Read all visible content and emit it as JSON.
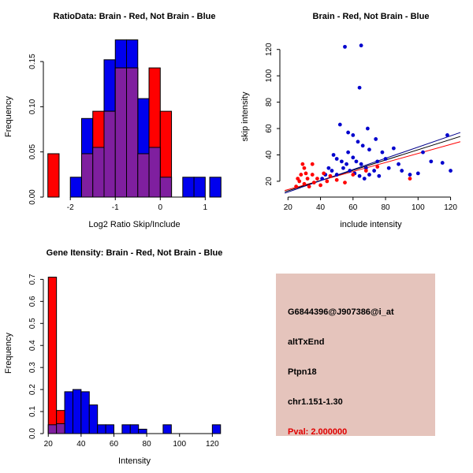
{
  "page": {
    "background": "#FFFFFF"
  },
  "colors": {
    "brain_red": "#FF0000",
    "not_brain_blue": "#0000EE",
    "overlap_purple": "#7F1F9F",
    "axis_black": "#000000",
    "info_bg": "#E5C4BC"
  },
  "chart_data": [
    {
      "type": "bar",
      "subtype": "histogram",
      "title": "RatioData: Brain - Red, Not Brain - Blue",
      "xlabel": "Log2 Ratio Skip/Include",
      "ylabel": "Frequency",
      "xlim": [
        -2.6,
        1.45
      ],
      "ylim": [
        0,
        0.178
      ],
      "xticks": [
        -2,
        -1,
        0,
        1
      ],
      "xtick_labels": [
        "-2",
        "-1",
        "0",
        "1"
      ],
      "yticks": [
        0,
        0.05,
        0.1,
        0.15
      ],
      "ytick_labels": [
        "0.00",
        "0.05",
        "0.10",
        "0.15"
      ],
      "bin_width": 0.25,
      "grid": false,
      "legend": "none",
      "overlap_color": "#7F1F9F",
      "series": [
        {
          "name": "Not Brain",
          "color": "#0000EE",
          "bins": [
            {
              "x": -2.0,
              "f": 0.022
            },
            {
              "x": -1.75,
              "f": 0.087
            },
            {
              "x": -1.5,
              "f": 0.055
            },
            {
              "x": -1.25,
              "f": 0.152
            },
            {
              "x": -1.0,
              "f": 0.174
            },
            {
              "x": -0.75,
              "f": 0.174
            },
            {
              "x": -0.5,
              "f": 0.109
            },
            {
              "x": -0.25,
              "f": 0.055
            },
            {
              "x": 0.0,
              "f": 0.022
            },
            {
              "x": 0.5,
              "f": 0.022
            },
            {
              "x": 0.75,
              "f": 0.022
            },
            {
              "x": 1.1,
              "f": 0.022
            }
          ]
        },
        {
          "name": "Brain",
          "color": "#FF0000",
          "bins": [
            {
              "x": -2.5,
              "f": 0.048
            },
            {
              "x": -1.75,
              "f": 0.048
            },
            {
              "x": -1.5,
              "f": 0.095
            },
            {
              "x": -1.25,
              "f": 0.095
            },
            {
              "x": -1.0,
              "f": 0.143
            },
            {
              "x": -0.75,
              "f": 0.143
            },
            {
              "x": -0.5,
              "f": 0.048
            },
            {
              "x": -0.25,
              "f": 0.143
            },
            {
              "x": 0.0,
              "f": 0.095
            }
          ]
        }
      ]
    },
    {
      "type": "scatter",
      "title": "Brain - Red, Not Brain - Blue",
      "xlabel": "include intensity",
      "ylabel": "skip intensity",
      "xlim": [
        15,
        127
      ],
      "ylim": [
        8,
        130
      ],
      "xticks": [
        20,
        40,
        60,
        80,
        100,
        120
      ],
      "xtick_labels": [
        "20",
        "40",
        "60",
        "80",
        "100",
        "120"
      ],
      "yticks": [
        20,
        40,
        60,
        80,
        100,
        120
      ],
      "ytick_labels": [
        "20",
        "40",
        "60",
        "80",
        "100",
        "120"
      ],
      "grid": false,
      "legend": "none",
      "lines": [
        {
          "color": "#FF0000",
          "x1": 18,
          "y1": 13,
          "x2": 126,
          "y2": 50
        },
        {
          "color": "#000000",
          "x1": 18,
          "y1": 12,
          "x2": 126,
          "y2": 54
        },
        {
          "color": "#00008B",
          "x1": 18,
          "y1": 11,
          "x2": 126,
          "y2": 57
        }
      ],
      "series": [
        {
          "name": "Not Brain",
          "color": "#0000CD",
          "points": [
            [
              55,
              122
            ],
            [
              65,
              123
            ],
            [
              64,
              91
            ],
            [
              52,
              63
            ],
            [
              69,
              60
            ],
            [
              57,
              57
            ],
            [
              60,
              55
            ],
            [
              74,
              52
            ],
            [
              63,
              50
            ],
            [
              66,
              47
            ],
            [
              85,
              45
            ],
            [
              70,
              44
            ],
            [
              57,
              42
            ],
            [
              78,
              42
            ],
            [
              103,
              42
            ],
            [
              48,
              40
            ],
            [
              60,
              38
            ],
            [
              50,
              37
            ],
            [
              80,
              37
            ],
            [
              53,
              35
            ],
            [
              62,
              35
            ],
            [
              75,
              35
            ],
            [
              108,
              35
            ],
            [
              115,
              34
            ],
            [
              65,
              33
            ],
            [
              88,
              33
            ],
            [
              56,
              33
            ],
            [
              68,
              30
            ],
            [
              82,
              30
            ],
            [
              45,
              30
            ],
            [
              54,
              30
            ],
            [
              47,
              28
            ],
            [
              58,
              28
            ],
            [
              90,
              28
            ],
            [
              73,
              28
            ],
            [
              120,
              28
            ],
            [
              61,
              26
            ],
            [
              100,
              26
            ],
            [
              43,
              25
            ],
            [
              50,
              25
            ],
            [
              70,
              25
            ],
            [
              95,
              25
            ],
            [
              64,
              24
            ],
            [
              76,
              24
            ],
            [
              67,
              22
            ],
            [
              41,
              22
            ],
            [
              118,
              55
            ]
          ]
        },
        {
          "name": "Brain",
          "color": "#FF0000",
          "points": [
            [
              25,
              16
            ],
            [
              27,
              20
            ],
            [
              28,
              25
            ],
            [
              30,
              18
            ],
            [
              30,
              30
            ],
            [
              32,
              22
            ],
            [
              33,
              16
            ],
            [
              35,
              25
            ],
            [
              36,
              19
            ],
            [
              38,
              22
            ],
            [
              40,
              17
            ],
            [
              42,
              26
            ],
            [
              44,
              20
            ],
            [
              46,
              24
            ],
            [
              35,
              33
            ],
            [
              29,
              33
            ],
            [
              26,
              22
            ],
            [
              31,
              26
            ],
            [
              50,
              21
            ],
            [
              55,
              19
            ],
            [
              60,
              25
            ],
            [
              68,
              28
            ],
            [
              75,
              31
            ],
            [
              95,
              22
            ]
          ]
        }
      ]
    },
    {
      "type": "bar",
      "subtype": "histogram",
      "title": "Gene Itensity: Brain - Red, Not Brain - Blue",
      "xlabel": "Intensity",
      "ylabel": "Frequency",
      "xlim": [
        17,
        128
      ],
      "ylim": [
        0,
        0.73
      ],
      "xticks": [
        20,
        40,
        60,
        80,
        100,
        120
      ],
      "xtick_labels": [
        "20",
        "40",
        "60",
        "80",
        "100",
        "120"
      ],
      "yticks": [
        0,
        0.1,
        0.2,
        0.3,
        0.4,
        0.5,
        0.6,
        0.7
      ],
      "ytick_labels": [
        "0.0",
        "0.1",
        "0.2",
        "0.3",
        "0.4",
        "0.5",
        "0.6",
        "0.7"
      ],
      "bin_width": 5,
      "grid": false,
      "legend": "none",
      "overlap_color": "#7F1F9F",
      "series": [
        {
          "name": "Not Brain",
          "color": "#0000EE",
          "bins": [
            {
              "x": 20,
              "f": 0.04
            },
            {
              "x": 25,
              "f": 0.045
            },
            {
              "x": 30,
              "f": 0.19
            },
            {
              "x": 35,
              "f": 0.2
            },
            {
              "x": 40,
              "f": 0.19
            },
            {
              "x": 45,
              "f": 0.13
            },
            {
              "x": 50,
              "f": 0.04
            },
            {
              "x": 55,
              "f": 0.04
            },
            {
              "x": 65,
              "f": 0.04
            },
            {
              "x": 70,
              "f": 0.04
            },
            {
              "x": 75,
              "f": 0.02
            },
            {
              "x": 90,
              "f": 0.04
            },
            {
              "x": 120,
              "f": 0.04
            }
          ]
        },
        {
          "name": "Brain",
          "color": "#FF0000",
          "bins": [
            {
              "x": 20,
              "f": 0.71
            },
            {
              "x": 25,
              "f": 0.105
            }
          ]
        }
      ]
    }
  ],
  "info_panel": {
    "background": "#E5C4BC",
    "lines": [
      {
        "text": "G6844396@J907386@i_at",
        "color": "#000000"
      },
      {
        "text": "altTxEnd",
        "color": "#000000"
      },
      {
        "text": "Ptpn18",
        "color": "#000000"
      },
      {
        "text": "chr1.151-1.30",
        "color": "#000000"
      },
      {
        "text": "Pval: 2.000000",
        "color": "#E00000"
      }
    ]
  }
}
